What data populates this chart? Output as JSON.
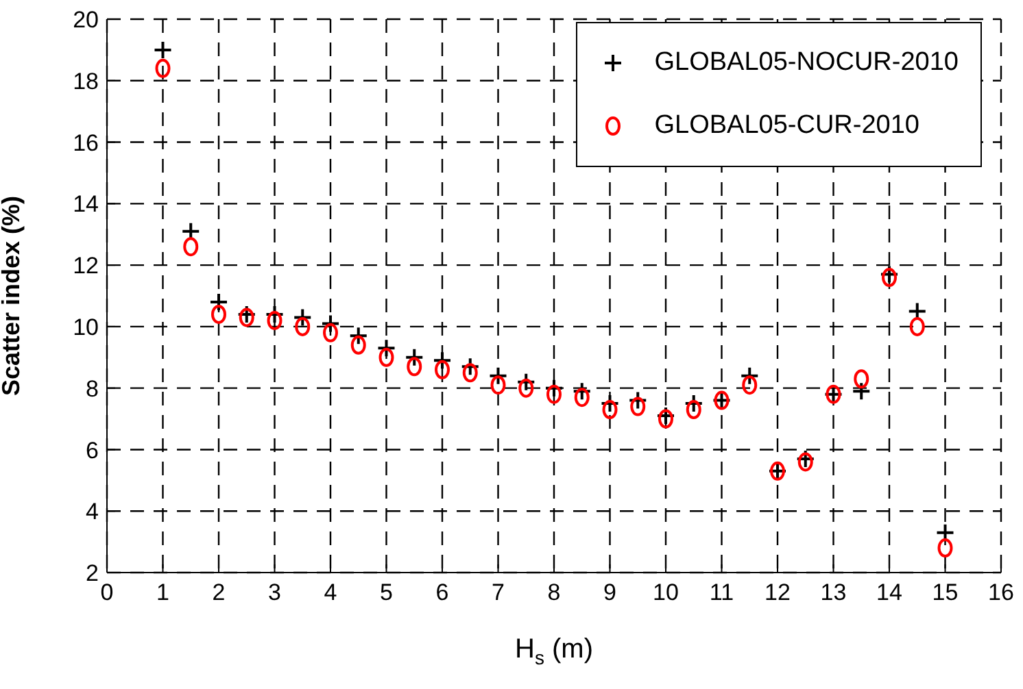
{
  "chart_data": {
    "type": "scatter",
    "xlabel": "H$_{s}$ (m)",
    "ylabel": "Scatter index (%)",
    "x": [
      1,
      1.5,
      2,
      2.5,
      3,
      3.5,
      4,
      4.5,
      5,
      5.5,
      6,
      6.5,
      7,
      7.5,
      8,
      8.5,
      9,
      9.5,
      10,
      10.5,
      11,
      11.5,
      12,
      12.5,
      13,
      13.5,
      14,
      14.5,
      15
    ],
    "series": [
      {
        "name": "GLOBAL05-NOCUR-2010",
        "color": "#000000",
        "marker": "cross",
        "values": [
          19.0,
          13.1,
          10.8,
          10.4,
          10.4,
          10.3,
          10.1,
          9.7,
          9.3,
          9.0,
          8.9,
          8.7,
          8.4,
          8.2,
          8.0,
          7.9,
          7.5,
          7.6,
          7.1,
          7.5,
          7.6,
          8.4,
          5.3,
          5.7,
          7.8,
          7.9,
          11.7,
          10.5,
          3.3
        ]
      },
      {
        "name": "GLOBAL05-CUR-2010",
        "color": "#ff0000",
        "marker": "circle",
        "values": [
          18.4,
          12.6,
          10.4,
          10.3,
          10.2,
          10.0,
          9.8,
          9.4,
          9.0,
          8.7,
          8.6,
          8.5,
          8.1,
          8.0,
          7.8,
          7.7,
          7.3,
          7.4,
          7.0,
          7.3,
          7.6,
          8.1,
          5.3,
          5.6,
          7.8,
          8.3,
          11.6,
          10.0,
          2.8
        ]
      }
    ],
    "xlim": [
      0,
      16
    ],
    "xticks": [
      0,
      1,
      2,
      3,
      4,
      5,
      6,
      7,
      8,
      9,
      10,
      11,
      12,
      13,
      14,
      15,
      16
    ],
    "ylim": [
      2,
      20
    ],
    "yticks": [
      2,
      4,
      6,
      8,
      10,
      12,
      14,
      16,
      18,
      20
    ],
    "grid": true,
    "legend": "top right"
  }
}
